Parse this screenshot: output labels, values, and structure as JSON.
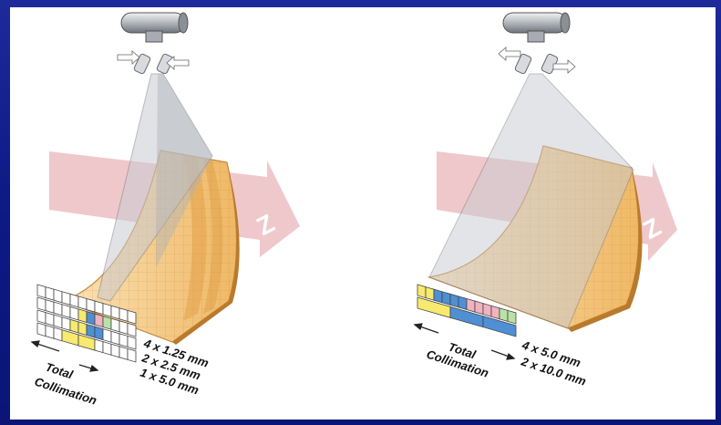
{
  "colors": {
    "background_blue": "#13208f",
    "z_arrow": "#e9b5b9",
    "detector_orange": "#f0c283",
    "detector_edge": "#c48638",
    "beam_fill": "#c9cbd2",
    "cell_yellow": "#f7ea6f",
    "cell_blue": "#4f8fd4",
    "cell_pink": "#f0b3c0",
    "cell_green": "#b9e2a7",
    "cell_white": "#ffffff"
  },
  "icons": [
    "x-ray-tube-icon",
    "collimator-icon",
    "z-axis-arrow-icon"
  ],
  "left": {
    "z_label": "Z",
    "total_label_line1": "Total",
    "total_label_line2": "Collimation",
    "config_labels": [
      "4 x 1.25 mm",
      "2 x 2.5 mm",
      "1 x 5.0 mm"
    ]
  },
  "right": {
    "z_label": "Z",
    "total_label_line1": "Total",
    "total_label_line2": "Collimation",
    "config_labels": [
      "4 x 5.0 mm",
      "2 x 10.0 mm"
    ]
  }
}
